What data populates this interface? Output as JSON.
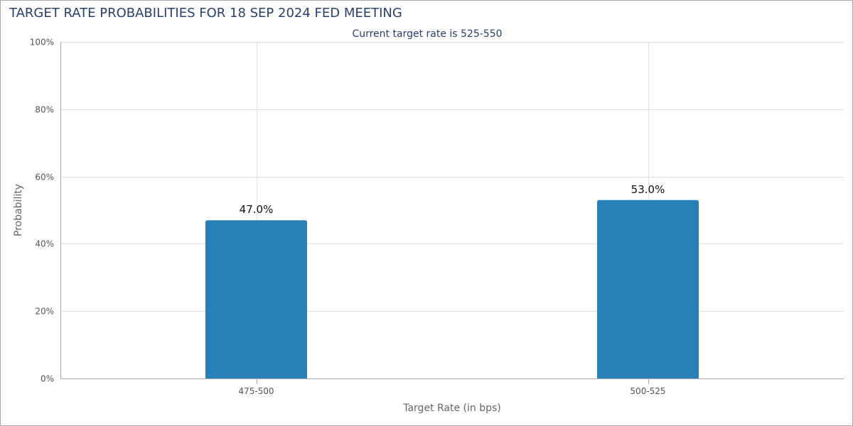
{
  "chart_data": {
    "type": "bar",
    "title": "TARGET RATE PROBABILITIES FOR 18 SEP 2024 FED MEETING",
    "subtitle": "Current target rate is 525-550",
    "xlabel": "Target Rate (in bps)",
    "ylabel": "Probability",
    "categories": [
      "475-500",
      "500-525"
    ],
    "values": [
      47.0,
      53.0
    ],
    "data_labels": [
      "47.0%",
      "53.0%"
    ],
    "ylim": [
      0,
      100
    ],
    "yticks": [
      0,
      20,
      40,
      60,
      80,
      100
    ],
    "ytick_labels": [
      "0%",
      "20%",
      "40%",
      "60%",
      "80%",
      "100%"
    ],
    "grid": true,
    "colors": {
      "bar": "#2980b9",
      "title": "#2b3f6c",
      "grid": "#e0e0e0",
      "axis": "#a8a8a8"
    }
  }
}
